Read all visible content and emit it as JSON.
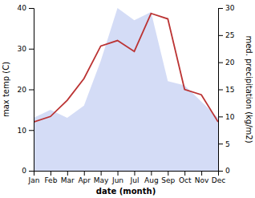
{
  "chart_data": {
    "type": "line",
    "xlabel": "date (month)",
    "ylabel": "max temp (C)",
    "y2label": "med. precipitation (kg/m2)",
    "categories": [
      "Jan",
      "Feb",
      "Mar",
      "Apr",
      "May",
      "Jun",
      "Jul",
      "Aug",
      "Sep",
      "Oct",
      "Nov",
      "Dec"
    ],
    "ylim": [
      0,
      40
    ],
    "yticks": [
      0,
      10,
      20,
      30,
      40
    ],
    "y2lim": [
      0,
      30
    ],
    "y2ticks": [
      0,
      5,
      10,
      15,
      20,
      25,
      30
    ],
    "series": [
      {
        "type": "area",
        "color": "#b0c0ee",
        "values": [
          13,
          15,
          13,
          16,
          27,
          40,
          37,
          39,
          22,
          21,
          17,
          13
        ]
      },
      {
        "type": "line",
        "color": "#bb3333",
        "axis": "y2",
        "values": [
          9,
          10,
          13,
          17,
          23,
          24,
          22,
          29,
          28,
          15,
          14,
          9
        ]
      }
    ]
  }
}
